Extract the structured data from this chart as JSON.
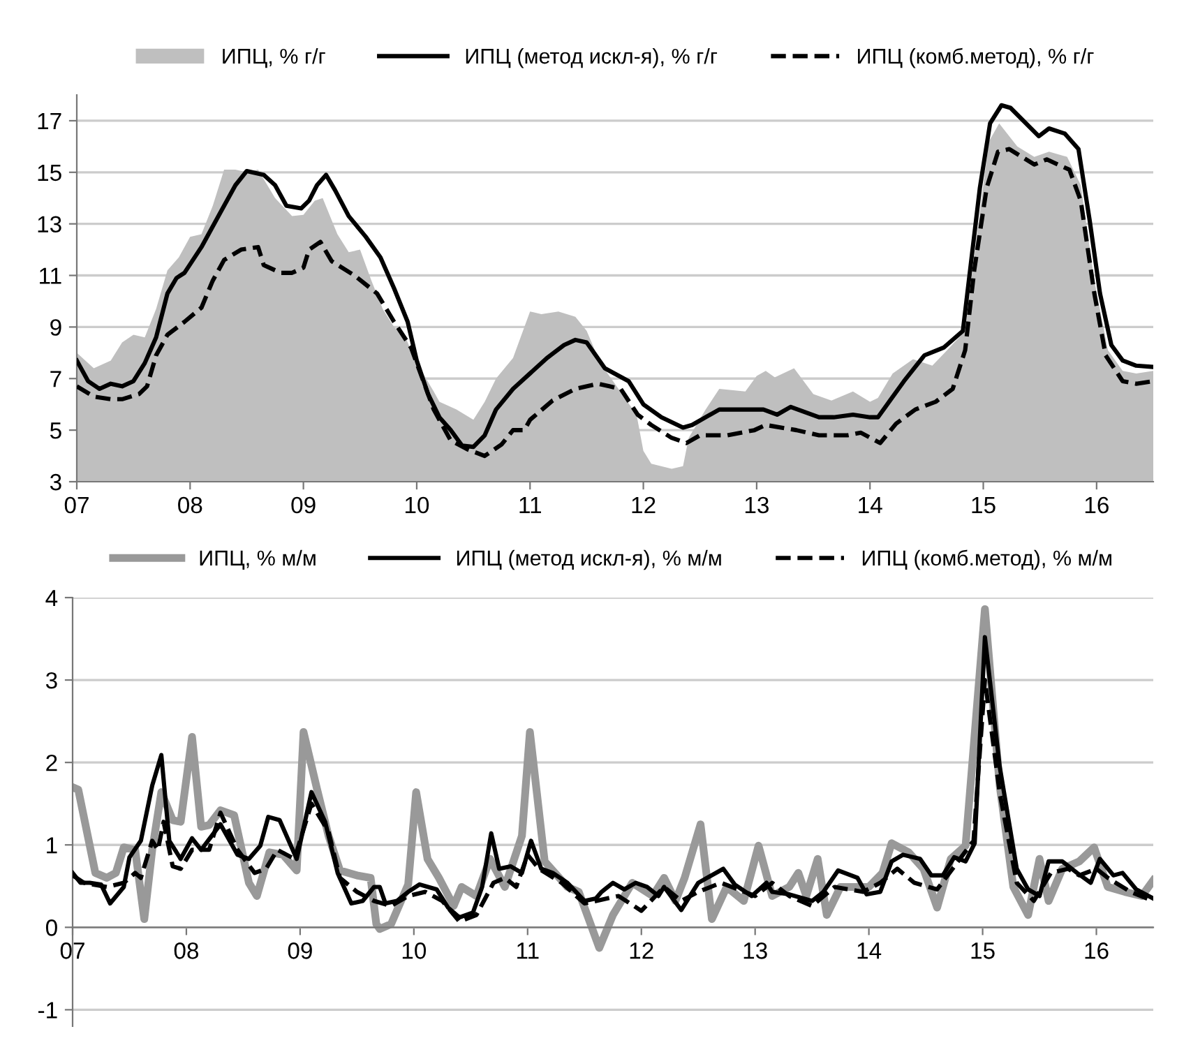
{
  "chart_data": [
    {
      "type": "line",
      "legend": "top",
      "grid": "y",
      "xlim": [
        7,
        16.5
      ],
      "ylim": [
        3,
        18
      ],
      "xticks": [
        {
          "value": 7,
          "label": "07"
        },
        {
          "value": 8,
          "label": "08"
        },
        {
          "value": 9,
          "label": "09"
        },
        10,
        11,
        12,
        13,
        14,
        15,
        16
      ],
      "yticks": [
        3,
        5,
        7,
        9,
        11,
        13,
        15,
        17
      ],
      "series": [
        {
          "name": "ИПЦ, % г/г",
          "type": "area",
          "color": "#bfbfbf",
          "x": [
            7.0,
            7.15,
            7.3,
            7.4,
            7.5,
            7.6,
            7.7,
            7.8,
            7.9,
            8.0,
            8.1,
            8.2,
            8.3,
            8.4,
            8.5,
            8.6,
            8.75,
            8.9,
            9.0,
            9.1,
            9.17,
            9.3,
            9.4,
            9.5,
            9.6,
            9.7,
            9.8,
            9.9,
            10.0,
            10.15,
            10.2,
            10.35,
            10.5,
            10.6,
            10.7,
            10.85,
            11.0,
            11.1,
            11.25,
            11.4,
            11.5,
            11.62,
            11.94,
            12.0,
            12.07,
            12.25,
            12.35,
            12.4,
            12.55,
            12.67,
            12.9,
            13.0,
            13.08,
            13.16,
            13.33,
            13.5,
            13.66,
            13.85,
            14.0,
            14.07,
            14.2,
            14.38,
            14.55,
            14.67,
            14.84,
            14.95,
            15.05,
            15.14,
            15.3,
            15.45,
            15.58,
            15.74,
            15.86,
            15.98,
            16.1,
            16.23,
            16.35,
            16.5
          ],
          "values": [
            8.0,
            7.4,
            7.7,
            8.4,
            8.7,
            8.6,
            9.7,
            11.2,
            11.7,
            12.5,
            12.6,
            13.7,
            15.1,
            15.1,
            15.0,
            15.1,
            14.0,
            13.3,
            13.35,
            13.9,
            14.0,
            12.6,
            11.9,
            12.0,
            10.8,
            9.7,
            9.0,
            8.6,
            7.6,
            6.5,
            6.1,
            5.8,
            5.4,
            6.1,
            7.0,
            7.8,
            9.6,
            9.5,
            9.6,
            9.4,
            8.85,
            7.6,
            5.6,
            4.2,
            3.7,
            3.5,
            3.6,
            4.7,
            5.8,
            6.6,
            6.5,
            7.1,
            7.3,
            7.05,
            7.4,
            6.4,
            6.15,
            6.5,
            6.1,
            6.25,
            7.2,
            7.75,
            7.5,
            8.05,
            8.85,
            12.8,
            16.2,
            16.9,
            16.0,
            15.6,
            15.8,
            15.6,
            14.5,
            10.8,
            8.1,
            7.3,
            7.2,
            7.3
          ]
        },
        {
          "name": "ИПЦ (метод искл-я), % г/г",
          "color": "#000000",
          "line_style": "solid",
          "x": [
            7.0,
            7.1,
            7.2,
            7.3,
            7.4,
            7.5,
            7.6,
            7.7,
            7.8,
            7.88,
            7.95,
            8.1,
            8.25,
            8.4,
            8.5,
            8.65,
            8.75,
            8.85,
            8.98,
            9.05,
            9.12,
            9.2,
            9.28,
            9.4,
            9.55,
            9.68,
            9.8,
            9.92,
            10.0,
            10.1,
            10.2,
            10.3,
            10.4,
            10.5,
            10.6,
            10.7,
            10.85,
            11.0,
            11.15,
            11.3,
            11.4,
            11.5,
            11.66,
            11.87,
            12.0,
            12.16,
            12.35,
            12.43,
            12.67,
            13.06,
            13.18,
            13.3,
            13.55,
            13.68,
            13.85,
            14.0,
            14.07,
            14.3,
            14.48,
            14.65,
            14.82,
            14.97,
            15.06,
            15.16,
            15.24,
            15.49,
            15.58,
            15.72,
            15.84,
            15.94,
            16.03,
            16.13,
            16.23,
            16.35,
            16.5
          ],
          "values": [
            7.7,
            6.9,
            6.6,
            6.8,
            6.7,
            6.9,
            7.6,
            8.6,
            10.3,
            10.9,
            11.1,
            12.1,
            13.3,
            14.5,
            15.05,
            14.9,
            14.5,
            13.7,
            13.6,
            13.9,
            14.5,
            14.9,
            14.3,
            13.3,
            12.5,
            11.7,
            10.5,
            9.2,
            7.7,
            6.4,
            5.5,
            5.0,
            4.4,
            4.35,
            4.8,
            5.8,
            6.6,
            7.2,
            7.8,
            8.3,
            8.5,
            8.4,
            7.4,
            6.9,
            6.0,
            5.5,
            5.1,
            5.2,
            5.8,
            5.8,
            5.6,
            5.9,
            5.5,
            5.5,
            5.6,
            5.5,
            5.5,
            6.9,
            7.9,
            8.2,
            8.85,
            14.4,
            16.9,
            17.6,
            17.5,
            16.4,
            16.7,
            16.5,
            15.9,
            13.1,
            10.3,
            8.3,
            7.7,
            7.5,
            7.45
          ]
        },
        {
          "name": "ИПЦ (комб.метод), % г/г",
          "color": "#000000",
          "line_style": "dashed",
          "x": [
            7.0,
            7.15,
            7.3,
            7.4,
            7.55,
            7.62,
            7.7,
            7.8,
            7.95,
            8.1,
            8.2,
            8.3,
            8.45,
            8.6,
            8.65,
            8.8,
            8.9,
            9.0,
            9.05,
            9.15,
            9.25,
            9.45,
            9.65,
            9.8,
            9.95,
            10.05,
            10.15,
            10.3,
            10.45,
            10.6,
            10.75,
            10.85,
            10.95,
            11.0,
            11.2,
            11.4,
            11.6,
            11.7,
            11.8,
            11.95,
            12.07,
            12.25,
            12.38,
            12.5,
            12.74,
            12.98,
            13.08,
            13.35,
            13.55,
            13.8,
            13.92,
            14.09,
            14.23,
            14.4,
            14.58,
            14.73,
            14.84,
            14.92,
            15.03,
            15.13,
            15.23,
            15.45,
            15.56,
            15.76,
            15.86,
            15.98,
            16.08,
            16.23,
            16.35,
            16.5
          ],
          "values": [
            6.7,
            6.3,
            6.2,
            6.2,
            6.4,
            6.7,
            7.9,
            8.7,
            9.2,
            9.75,
            10.8,
            11.6,
            12.0,
            12.1,
            11.4,
            11.1,
            11.1,
            11.3,
            12.0,
            12.3,
            11.55,
            11.0,
            10.3,
            9.2,
            8.2,
            7.0,
            5.8,
            4.6,
            4.25,
            4.0,
            4.45,
            5.0,
            5.0,
            5.4,
            6.15,
            6.6,
            6.8,
            6.7,
            6.6,
            5.6,
            5.2,
            4.7,
            4.5,
            4.8,
            4.8,
            5.0,
            5.2,
            5.0,
            4.8,
            4.8,
            4.9,
            4.5,
            5.25,
            5.8,
            6.1,
            6.6,
            8.1,
            11.2,
            14.4,
            15.8,
            15.9,
            15.3,
            15.5,
            15.1,
            13.9,
            10.3,
            7.9,
            6.9,
            6.8,
            6.9
          ]
        }
      ]
    },
    {
      "type": "line",
      "legend": "top",
      "grid": "y",
      "xlim": [
        7,
        16.5
      ],
      "ylim": [
        -1.2,
        4
      ],
      "xticks": [
        {
          "value": 7,
          "label": "07"
        },
        {
          "value": 8,
          "label": "08"
        },
        {
          "value": 9,
          "label": "09"
        },
        10,
        11,
        12,
        13,
        14,
        15,
        16
      ],
      "yticks": [
        -1,
        0,
        1,
        2,
        3,
        4
      ],
      "series": [
        {
          "name": "ИПЦ, % м/м",
          "color": "#999999",
          "line_style": "solid",
          "x": [
            7.0,
            7.05,
            7.2,
            7.3,
            7.38,
            7.45,
            7.55,
            7.63,
            7.7,
            7.78,
            7.88,
            7.95,
            8.05,
            8.13,
            8.2,
            8.3,
            8.42,
            8.55,
            8.62,
            8.73,
            8.85,
            8.97,
            9.03,
            9.15,
            9.25,
            9.35,
            9.5,
            9.62,
            9.67,
            9.7,
            9.8,
            9.95,
            10.02,
            10.12,
            10.22,
            10.35,
            10.42,
            10.55,
            10.67,
            10.8,
            10.95,
            11.02,
            11.15,
            11.35,
            11.45,
            11.63,
            11.75,
            11.92,
            12.1,
            12.2,
            12.3,
            12.38,
            12.52,
            12.62,
            12.75,
            12.9,
            13.03,
            13.15,
            13.3,
            13.38,
            13.45,
            13.55,
            13.63,
            13.75,
            14.0,
            14.12,
            14.2,
            14.35,
            14.48,
            14.6,
            14.72,
            14.85,
            15.02,
            15.15,
            15.27,
            15.4,
            15.5,
            15.58,
            15.7,
            15.85,
            15.98,
            16.1,
            16.25,
            16.4,
            16.5
          ],
          "values": [
            1.7,
            1.67,
            0.66,
            0.6,
            0.66,
            0.97,
            0.94,
            0.1,
            0.94,
            1.64,
            1.3,
            1.28,
            2.31,
            1.22,
            1.24,
            1.42,
            1.36,
            0.54,
            0.38,
            0.91,
            0.88,
            0.69,
            2.37,
            1.67,
            1.11,
            0.69,
            0.63,
            0.6,
            0.04,
            -0.02,
            0.04,
            0.52,
            1.64,
            0.83,
            0.6,
            0.26,
            0.49,
            0.38,
            0.83,
            0.49,
            1.11,
            2.37,
            0.8,
            0.49,
            0.43,
            -0.25,
            0.15,
            0.54,
            0.38,
            0.6,
            0.32,
            0.6,
            1.25,
            0.1,
            0.49,
            0.32,
            0.99,
            0.38,
            0.49,
            0.66,
            0.38,
            0.83,
            0.15,
            0.49,
            0.49,
            0.66,
            1.02,
            0.91,
            0.71,
            0.24,
            0.83,
            0.99,
            3.86,
            1.72,
            0.49,
            0.15,
            0.83,
            0.32,
            0.71,
            0.8,
            0.97,
            0.49,
            0.43,
            0.38,
            0.57
          ]
        },
        {
          "name": "ИПЦ (метод искл-я), % м/м",
          "color": "#000000",
          "line_style": "solid",
          "x": [
            7.0,
            7.07,
            7.15,
            7.25,
            7.33,
            7.45,
            7.5,
            7.6,
            7.7,
            7.78,
            7.85,
            7.95,
            8.05,
            8.13,
            8.3,
            8.45,
            8.55,
            8.65,
            8.72,
            8.82,
            8.97,
            9.1,
            9.22,
            9.33,
            9.45,
            9.55,
            9.65,
            9.7,
            9.75,
            9.85,
            9.95,
            10.05,
            10.2,
            10.3,
            10.4,
            10.52,
            10.6,
            10.68,
            10.75,
            10.85,
            10.95,
            11.03,
            11.12,
            11.22,
            11.35,
            11.5,
            11.6,
            11.65,
            11.75,
            11.85,
            11.95,
            12.05,
            12.15,
            12.2,
            12.35,
            12.5,
            12.72,
            12.82,
            12.97,
            13.1,
            13.15,
            13.3,
            13.5,
            13.6,
            13.73,
            13.9,
            13.98,
            14.1,
            14.2,
            14.3,
            14.45,
            14.55,
            14.65,
            14.75,
            14.85,
            14.93,
            15.02,
            15.15,
            15.3,
            15.4,
            15.5,
            15.58,
            15.7,
            15.83,
            15.95,
            16.03,
            16.15,
            16.23,
            16.35,
            16.5
          ],
          "values": [
            0.66,
            0.54,
            0.54,
            0.52,
            0.29,
            0.49,
            0.85,
            1.05,
            1.72,
            2.09,
            1.05,
            0.83,
            1.08,
            0.94,
            1.25,
            0.88,
            0.83,
            0.99,
            1.34,
            1.3,
            0.83,
            1.64,
            1.28,
            0.66,
            0.29,
            0.32,
            0.49,
            0.49,
            0.29,
            0.32,
            0.43,
            0.52,
            0.46,
            0.24,
            0.12,
            0.18,
            0.49,
            1.14,
            0.71,
            0.74,
            0.66,
            1.05,
            0.71,
            0.66,
            0.54,
            0.32,
            0.35,
            0.43,
            0.54,
            0.46,
            0.54,
            0.49,
            0.38,
            0.49,
            0.21,
            0.54,
            0.71,
            0.52,
            0.38,
            0.54,
            0.43,
            0.4,
            0.32,
            0.43,
            0.69,
            0.6,
            0.4,
            0.43,
            0.8,
            0.88,
            0.83,
            0.63,
            0.63,
            0.85,
            0.8,
            1.02,
            3.52,
            1.95,
            0.71,
            0.46,
            0.38,
            0.8,
            0.8,
            0.66,
            0.54,
            0.83,
            0.63,
            0.66,
            0.46,
            0.35
          ]
        },
        {
          "name": "ИПЦ (комб.метод), % м/м",
          "color": "#000000",
          "line_style": "dashed",
          "x": [
            7.0,
            7.1,
            7.3,
            7.45,
            7.55,
            7.6,
            7.7,
            7.75,
            7.8,
            7.88,
            7.95,
            8.05,
            8.2,
            8.3,
            8.45,
            8.6,
            8.7,
            8.8,
            8.95,
            9.1,
            9.25,
            9.35,
            9.5,
            9.65,
            9.8,
            9.95,
            10.1,
            10.25,
            10.4,
            10.55,
            10.7,
            10.8,
            10.9,
            11.0,
            11.1,
            11.3,
            11.5,
            11.8,
            12.0,
            12.2,
            12.35,
            12.5,
            12.7,
            12.85,
            13.0,
            13.15,
            13.3,
            13.5,
            13.7,
            13.95,
            14.1,
            14.25,
            14.4,
            14.6,
            14.8,
            14.92,
            15.02,
            15.15,
            15.3,
            15.45,
            15.6,
            15.75,
            15.85,
            16.0,
            16.1,
            16.3,
            16.5
          ],
          "values": [
            0.63,
            0.54,
            0.49,
            0.54,
            0.66,
            0.6,
            1.05,
            0.94,
            1.28,
            0.74,
            0.71,
            0.94,
            0.94,
            1.39,
            0.94,
            0.66,
            0.71,
            0.94,
            0.83,
            1.5,
            1.16,
            0.6,
            0.43,
            0.32,
            0.26,
            0.38,
            0.43,
            0.32,
            0.07,
            0.15,
            0.54,
            0.6,
            0.49,
            0.88,
            0.71,
            0.54,
            0.29,
            0.38,
            0.2,
            0.49,
            0.32,
            0.43,
            0.54,
            0.46,
            0.38,
            0.54,
            0.38,
            0.26,
            0.49,
            0.43,
            0.54,
            0.71,
            0.54,
            0.46,
            0.83,
            1.05,
            3.0,
            1.63,
            0.54,
            0.32,
            0.66,
            0.71,
            0.63,
            0.71,
            0.6,
            0.43,
            0.32
          ]
        }
      ]
    }
  ]
}
